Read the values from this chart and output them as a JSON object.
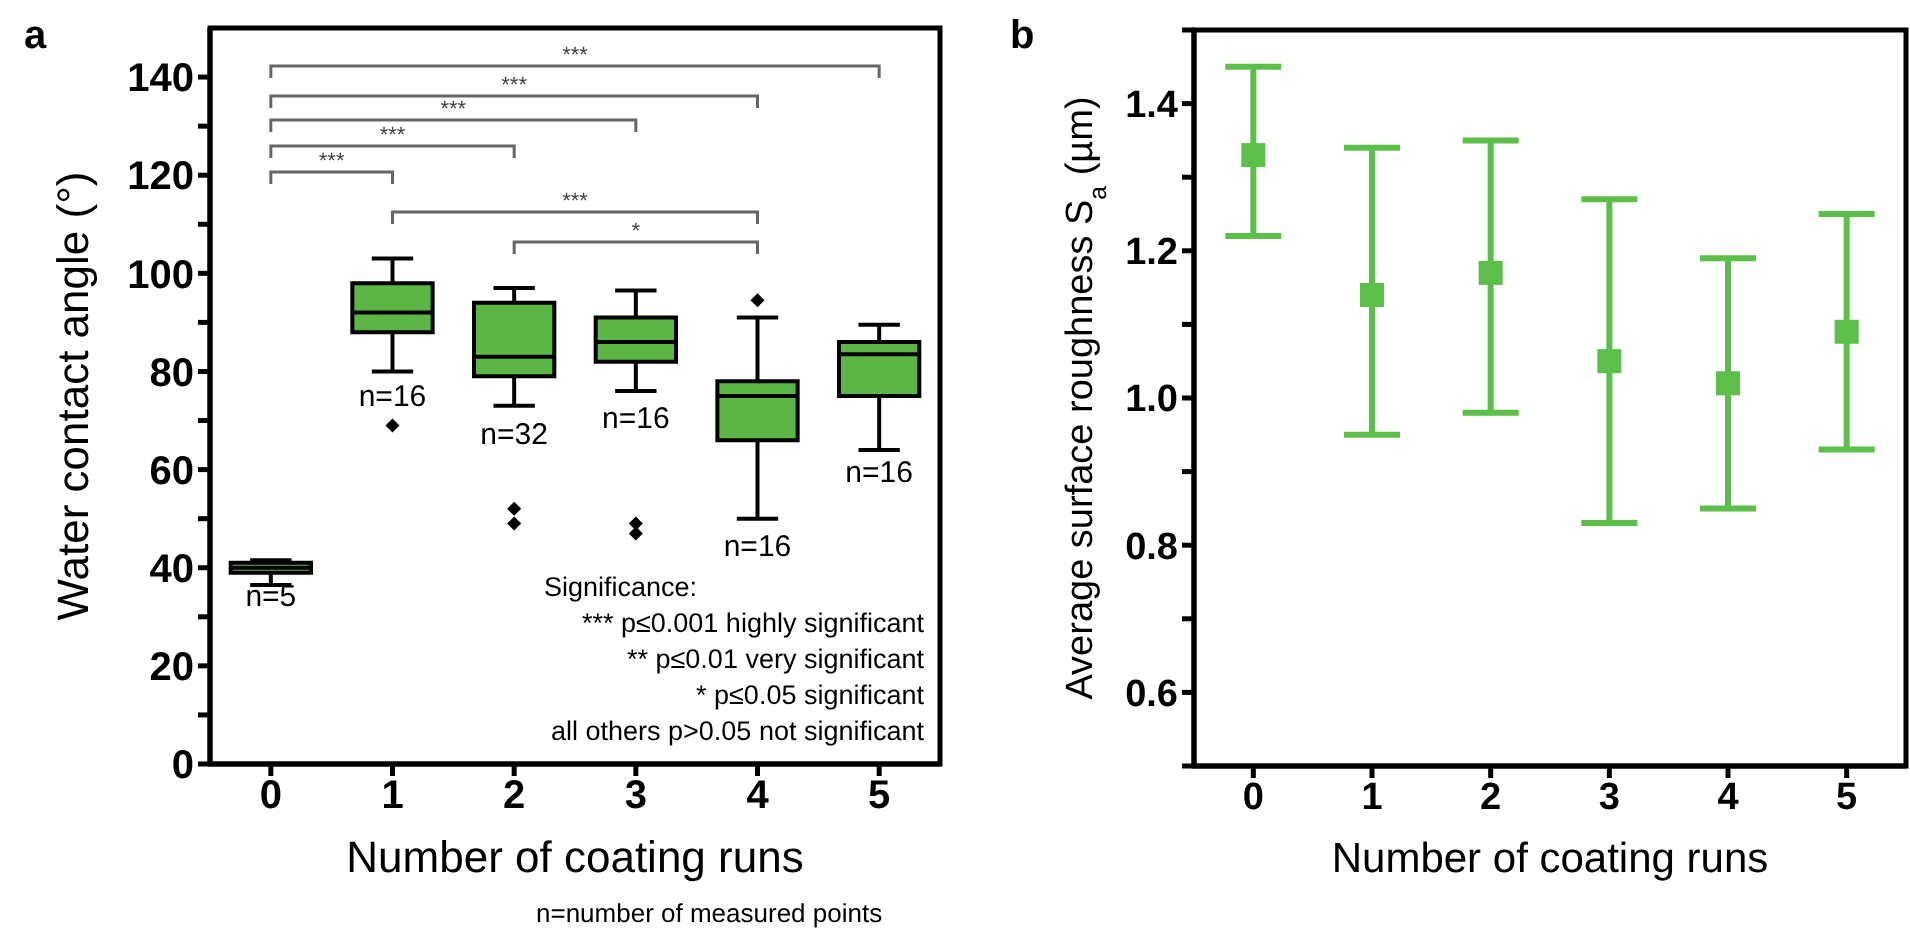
{
  "chart_data": [
    {
      "type": "box",
      "title": "a",
      "xlabel": "Number of coating runs",
      "ylabel": "Water contact angle (°)",
      "categories": [
        "0",
        "1",
        "2",
        "3",
        "4",
        "5"
      ],
      "color": "#5cb646",
      "marker": "diamond",
      "boxes": [
        {
          "low": 36.5,
          "q1": 39,
          "median": 40,
          "q3": 41,
          "high": 41.5
        },
        {
          "low": 80,
          "q1": 88,
          "median": 92,
          "q3": 98,
          "high": 103,
          "outliers": [
            69
          ]
        },
        {
          "low": 73,
          "q1": 79,
          "median": 83,
          "q3": 94,
          "high": 97,
          "outliers": [
            49,
            52
          ]
        },
        {
          "low": 76,
          "q1": 82,
          "median": 86,
          "q3": 91,
          "high": 96.5,
          "outliers": [
            47,
            49
          ]
        },
        {
          "low": 50,
          "q1": 66,
          "median": 75,
          "q3": 78,
          "high": 91,
          "outliers": [
            94.5
          ]
        },
        {
          "low": 64,
          "q1": 75,
          "median": 83.5,
          "q3": 86,
          "high": 89.5
        }
      ],
      "ylim": [
        0,
        150
      ],
      "yticks": [
        0,
        {
          "value": 10,
          "label": null
        },
        20,
        {
          "value": 30,
          "label": null
        },
        40,
        {
          "value": 50,
          "label": null
        },
        60,
        {
          "value": 70,
          "label": null
        },
        80,
        {
          "value": 90,
          "label": null
        },
        100,
        {
          "value": 110,
          "label": null
        },
        120,
        {
          "value": 130,
          "label": null
        },
        140
      ],
      "annotations": [
        "***",
        "***",
        "***",
        "***",
        "***",
        "***",
        "*",
        "n=5",
        "n=16",
        "n=32",
        "n=16",
        "n=16",
        "n=16",
        "Significance:",
        "*** p≤0.001 highly significant",
        "** p≤0.01 very significant",
        "* p≤0.05 significant",
        "all others p>0.05 not significant",
        "n=number of measured points"
      ]
    },
    {
      "type": "scatter",
      "title": "b",
      "xlabel": "Number of coating runs",
      "ylabel": "Average surface roughness S$_{a}$ (µm)",
      "categories": [
        "0",
        "1",
        "2",
        "3",
        "4",
        "5"
      ],
      "color": "#5cbf4a",
      "marker": "square",
      "values": [
        1.33,
        1.14,
        1.17,
        1.05,
        1.02,
        1.09
      ],
      "errors": [
        [
          1.22,
          1.45
        ],
        [
          0.95,
          1.34
        ],
        [
          0.98,
          1.35
        ],
        [
          0.83,
          1.27
        ],
        [
          0.85,
          1.19
        ],
        [
          0.93,
          1.25
        ]
      ],
      "ylim": [
        0.5,
        1.5
      ],
      "yticks": [
        {
          "value": 0.5,
          "label": null
        },
        0.6,
        {
          "value": 0.7,
          "label": null
        },
        0.8,
        {
          "value": 0.9,
          "label": null
        },
        {
          "value": 1,
          "label": "1.0"
        },
        {
          "value": 1.1,
          "label": null
        },
        1.2,
        {
          "value": 1.3,
          "label": null
        },
        1.4,
        {
          "value": 1.5,
          "label": null
        }
      ]
    }
  ]
}
